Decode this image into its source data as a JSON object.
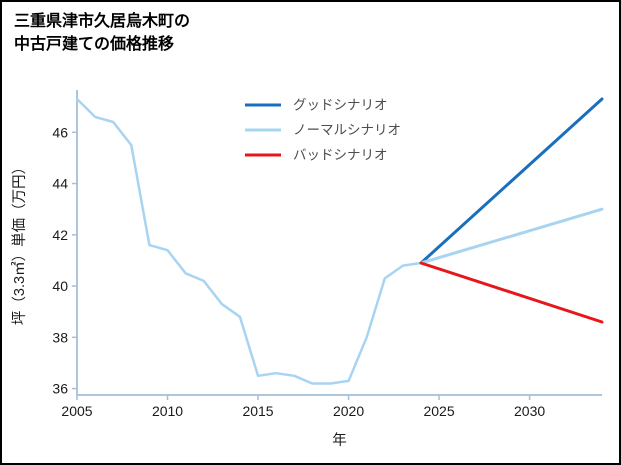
{
  "title": {
    "line1": "三重県津市久居烏木町の",
    "line2": "中古戸建ての価格推移"
  },
  "chart_data": {
    "type": "line",
    "title": "三重県津市久居烏木町の中古戸建ての価格推移",
    "xlabel": "年",
    "ylabel": "坪（3.3㎡）単価（万円）",
    "xlim": [
      2005,
      2034
    ],
    "ylim": [
      35.75,
      47.65
    ],
    "x_ticks": [
      2005,
      2010,
      2015,
      2020,
      2025,
      2030
    ],
    "y_ticks": [
      36,
      38,
      40,
      42,
      44,
      46
    ],
    "grid": false,
    "legend_position": "upper-center-inside",
    "axis_color": "#a3bfd9",
    "tick_label_color": "#1a1a1a",
    "legend_text_color": "#4d4d4d",
    "legend": [
      {
        "label": "グッドシナリオ",
        "color": "#1a6fbd",
        "key": "good"
      },
      {
        "label": "ノーマルシナリオ",
        "color": "#a8d4f2",
        "key": "normal"
      },
      {
        "label": "バッドシナリオ",
        "color": "#e8151a",
        "key": "bad"
      }
    ],
    "series": [
      {
        "name": "historical",
        "color": "#a8d4f2",
        "width": 2.5,
        "x": [
          2005,
          2006,
          2007,
          2008,
          2009,
          2010,
          2011,
          2012,
          2013,
          2014,
          2015,
          2016,
          2017,
          2018,
          2019,
          2020,
          2021,
          2022,
          2023,
          2024
        ],
        "values": [
          47.3,
          46.6,
          46.4,
          45.5,
          41.6,
          41.4,
          40.5,
          40.2,
          39.3,
          38.8,
          36.5,
          36.6,
          36.5,
          36.2,
          36.2,
          36.3,
          38.0,
          40.3,
          40.8,
          40.9
        ]
      },
      {
        "name": "グッドシナリオ",
        "color": "#1a6fbd",
        "width": 3,
        "x": [
          2024,
          2034
        ],
        "values": [
          40.9,
          47.3
        ]
      },
      {
        "name": "ノーマルシナリオ",
        "color": "#a8d4f2",
        "width": 3,
        "x": [
          2024,
          2034
        ],
        "values": [
          40.9,
          43.0
        ]
      },
      {
        "name": "バッドシナリオ",
        "color": "#e8151a",
        "width": 3,
        "x": [
          2024,
          2034
        ],
        "values": [
          40.9,
          38.6
        ]
      }
    ]
  }
}
